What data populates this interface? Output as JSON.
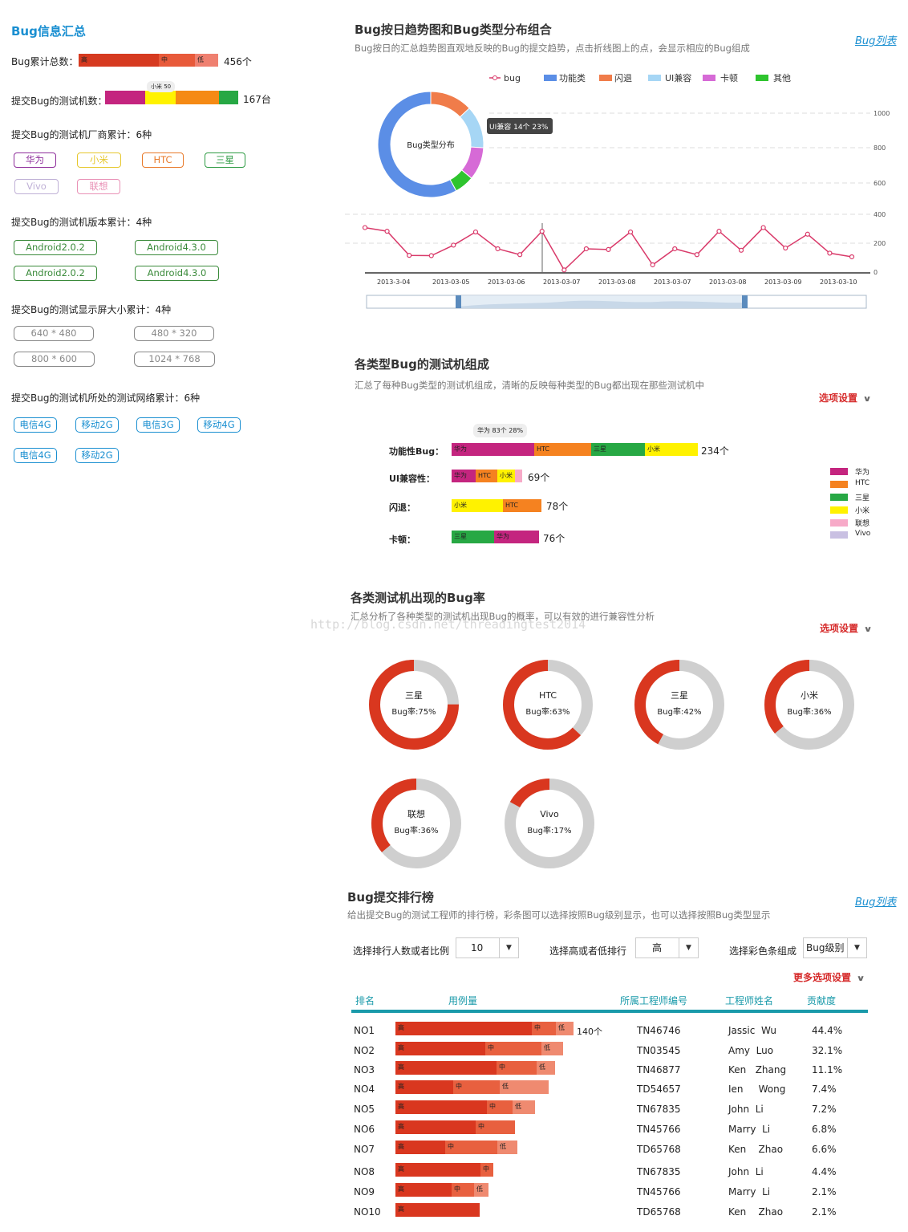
{
  "left": {
    "title": "Bug信息汇总",
    "total": {
      "label": "Bug累计总数：",
      "segments": [
        "高",
        "中",
        "低"
      ],
      "value": "456个"
    },
    "devices": {
      "label": "提交Bug的测试机数：",
      "tooltip": "小米 50",
      "value": "167台"
    },
    "vendors": {
      "label": "提交Bug的测试机厂商累计：6种",
      "tags": [
        "华为",
        "小米",
        "HTC",
        "三星",
        "Vivo",
        "联想"
      ],
      "colors": [
        "#8e2e9b",
        "#e6c72c",
        "#e87a2a",
        "#2e9b44",
        "#bfb0d6",
        "#e991b6"
      ]
    },
    "versions": {
      "label": "提交Bug的测试机版本累计：4种",
      "tags": [
        "Android2.0.2",
        "Android4.3.0",
        "Android2.0.2",
        "Android4.3.0"
      ]
    },
    "screens": {
      "label": "提交Bug的测试显示屏大小累计：4种",
      "tags": [
        "640 * 480",
        "480 * 320",
        "800 * 600",
        "1024 * 768"
      ]
    },
    "networks": {
      "label": "提交Bug的测试机所处的测试网络累计：6种",
      "tags": [
        "电信4G",
        "移动2G",
        "电信3G",
        "移动4G",
        "电信4G",
        "移动2G"
      ]
    }
  },
  "trend": {
    "title": "Bug按日趋势图和Bug类型分布组合",
    "desc": "Bug按日的汇总趋势图直观地反映的Bug的提交趋势，点击折线图上的点，会显示相应的Bug组成",
    "link": "Bug列表",
    "legend": [
      "bug",
      "功能类",
      "闪退",
      "UI兼容",
      "卡顿",
      "其他"
    ],
    "legend_colors": [
      "#d93a6a",
      "#5b8ee6",
      "#f07c4a",
      "#a6d6f5",
      "#d66ad6",
      "#2ec42e"
    ],
    "donut_label": "Bug类型分布",
    "tooltip": "UI兼容 14个 23%",
    "yticks": [
      "1000",
      "800",
      "600",
      "400",
      "200",
      "0"
    ],
    "xticks": [
      "2013-3-04",
      "2013-03-05",
      "2013-03-06",
      "2013-03-07",
      "2013-03-08",
      "2013-03-07",
      "2013-03-08",
      "2013-03-09",
      "2013-03-10"
    ],
    "series": [
      310,
      285,
      120,
      118,
      190,
      280,
      165,
      125,
      285,
      20,
      165,
      160,
      280,
      55,
      165,
      125,
      285,
      155,
      310,
      170,
      265,
      135,
      110
    ]
  },
  "composition": {
    "title": "各类型Bug的测试机组成",
    "desc": "汇总了每种Bug类型的测试机组成，清晰的反映每种类型的Bug都出现在那些测试机中",
    "options": "选项设置",
    "tooltip": "华为 83个 28%",
    "rows": [
      {
        "label": "功能性Bug：",
        "segs": [
          "华为",
          "HTC",
          "三星",
          "小米"
        ],
        "value": "234个"
      },
      {
        "label": "UI兼容性：",
        "segs": [
          "华为",
          "HTC",
          "小米",
          ""
        ],
        "value": "69个"
      },
      {
        "label": "闪退：",
        "segs": [
          "小米",
          "HTC"
        ],
        "value": "78个"
      },
      {
        "label": "卡顿：",
        "segs": [
          "三星",
          "华为"
        ],
        "value": "76个"
      }
    ],
    "legend": [
      "华为",
      "HTC",
      "三星",
      "小米",
      "联想",
      "Vivo"
    ],
    "legend_colors": [
      "#c4257f",
      "#f58220",
      "#27a844",
      "#fff200",
      "#f7aac8",
      "#c9c0e2"
    ]
  },
  "rate": {
    "title": "各类测试机出现的Bug率",
    "desc": "汇总分析了各种类型的测试机出现Bug的概率，可以有效的进行兼容性分析",
    "watermark": "http://blog.csdn.net/threadingtest2014",
    "options": "选项设置",
    "items": [
      {
        "name": "三星",
        "rate_label": "Bug率:75%",
        "rate": 0.75
      },
      {
        "name": "HTC",
        "rate_label": "Bug率:63%",
        "rate": 0.63
      },
      {
        "name": "三星",
        "rate_label": "Bug率:42%",
        "rate": 0.42
      },
      {
        "name": "小米",
        "rate_label": "Bug率:36%",
        "rate": 0.36
      },
      {
        "name": "联想",
        "rate_label": "Bug率:36%",
        "rate": 0.36
      },
      {
        "name": "Vivo",
        "rate_label": "Bug率:17%",
        "rate": 0.17
      }
    ]
  },
  "ranking": {
    "title": "Bug提交排行榜",
    "desc": "给出提交Bug的测试工程师的排行榜，彩条图可以选择按照Bug级别显示，也可以选择按照Bug类型显示",
    "link": "Bug列表",
    "ctrl1_label": "选择排行人数或者比例",
    "ctrl1_value": "10",
    "ctrl2_label": "选择高或者低排行",
    "ctrl2_value": "高",
    "ctrl3_label": "选择彩色条组成",
    "ctrl3_value": "Bug级别",
    "more": "更多选项设置",
    "headers": [
      "排名",
      "用例量",
      "所属工程师编号",
      "工程师姓名",
      "贡献度"
    ],
    "level_labels": [
      "高",
      "中",
      "低"
    ],
    "first_value": "140个",
    "rows": [
      {
        "rank": "NO1",
        "id": "TN46746",
        "name": "Jassic  Wu",
        "pct": "44.4%",
        "segs": [
          170,
          30,
          22
        ]
      },
      {
        "rank": "NO2",
        "id": "TN03545",
        "name": "Amy  Luo",
        "pct": "32.1%",
        "segs": [
          112,
          70,
          27
        ]
      },
      {
        "rank": "NO3",
        "id": "TN46877",
        "name": "Ken   Zhang",
        "pct": "11.1%",
        "segs": [
          126,
          50,
          23
        ]
      },
      {
        "rank": "NO4",
        "id": "TD54657",
        "name": "Ien     Wong",
        "pct": "7.4%",
        "segs": [
          72,
          58,
          61
        ]
      },
      {
        "rank": "NO5",
        "id": "TN67835",
        "name": "John  Li",
        "pct": "7.2%",
        "segs": [
          114,
          32,
          28
        ]
      },
      {
        "rank": "NO6",
        "id": "TN45766",
        "name": "Marry  Li",
        "pct": "6.8%",
        "segs": [
          100,
          49,
          0
        ]
      },
      {
        "rank": "NO7",
        "id": "TD65768",
        "name": "Ken    Zhao",
        "pct": "6.6%",
        "segs": [
          62,
          65,
          25
        ]
      },
      {
        "rank": "NO8",
        "id": "TN67835",
        "name": "John  Li",
        "pct": "4.4%",
        "segs": [
          106,
          16,
          0
        ]
      },
      {
        "rank": "NO9",
        "id": "TN45766",
        "name": "Marry  Li",
        "pct": "2.1%",
        "segs": [
          70,
          28,
          18
        ]
      },
      {
        "rank": "NO10",
        "id": "TD65768",
        "name": "Ken    Zhao",
        "pct": "2.1%",
        "segs": [
          105,
          0,
          0
        ]
      }
    ]
  }
}
